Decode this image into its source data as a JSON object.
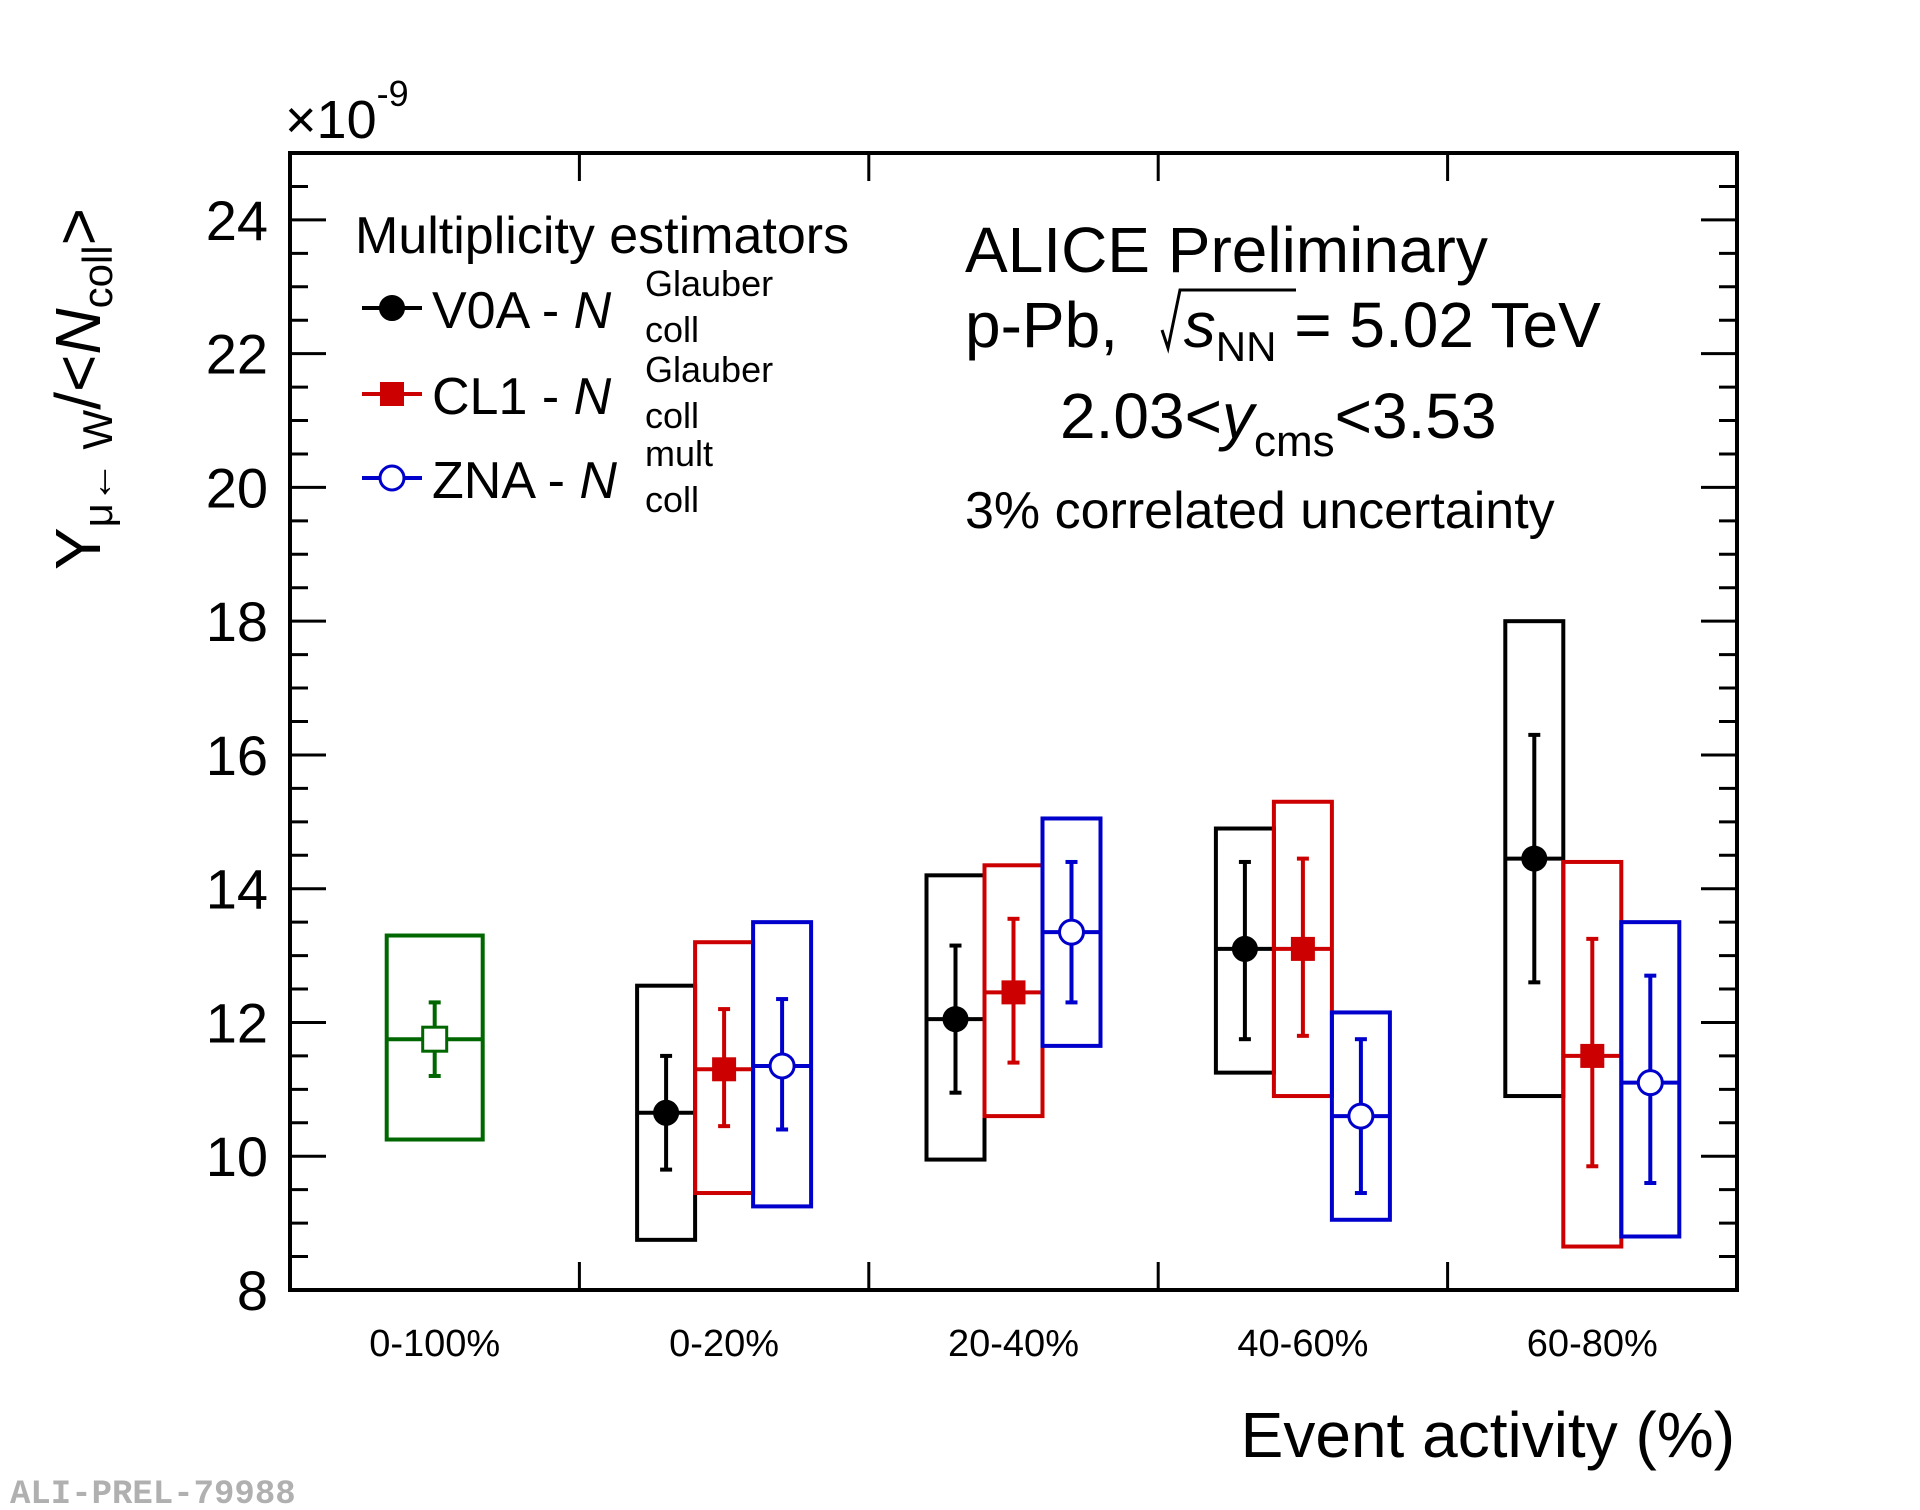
{
  "chart_data": {
    "type": "scatter",
    "title": "",
    "xlabel": "Event activity (%)",
    "ylabel": {
      "base": "Y",
      "sub": "μ← W",
      "mid": "/<",
      "ital": "N",
      "sub2": "coll",
      "end": ">"
    },
    "y_multiplier": {
      "prefix": "×10",
      "exp": "-9"
    },
    "ylim": [
      8,
      25
    ],
    "yticks": [
      "8",
      "10",
      "12",
      "14",
      "16",
      "18",
      "20",
      "22",
      "24"
    ],
    "categories": [
      "0-100%",
      "0-20%",
      "20-40%",
      "40-60%",
      "60-80%"
    ],
    "colors": {
      "V0A": "#000000",
      "CL1": "#cc0000",
      "ZNA": "#0000cc",
      "MB": "#006600"
    },
    "series": [
      {
        "name": "MB",
        "marker": "open-square",
        "color": "#006600",
        "points": [
          {
            "cat": 0,
            "y": 11.75,
            "stat": [
              11.2,
              12.3
            ],
            "sys": [
              10.25,
              13.3
            ]
          }
        ]
      },
      {
        "name": "V0A",
        "marker": "filled-circle",
        "color": "#000000",
        "points": [
          {
            "cat": 1,
            "y": 10.65,
            "stat": [
              9.8,
              11.5
            ],
            "sys": [
              8.75,
              12.55
            ]
          },
          {
            "cat": 2,
            "y": 12.05,
            "stat": [
              10.95,
              13.15
            ],
            "sys": [
              9.95,
              14.2
            ]
          },
          {
            "cat": 3,
            "y": 13.1,
            "stat": [
              11.75,
              14.4
            ],
            "sys": [
              11.25,
              14.9
            ]
          },
          {
            "cat": 4,
            "y": 14.45,
            "stat": [
              12.6,
              16.3
            ],
            "sys": [
              10.9,
              18.0
            ]
          }
        ]
      },
      {
        "name": "CL1",
        "marker": "filled-square",
        "color": "#cc0000",
        "points": [
          {
            "cat": 1,
            "y": 11.3,
            "stat": [
              10.45,
              12.2
            ],
            "sys": [
              9.45,
              13.2
            ]
          },
          {
            "cat": 2,
            "y": 12.45,
            "stat": [
              11.4,
              13.55
            ],
            "sys": [
              10.6,
              14.35
            ]
          },
          {
            "cat": 3,
            "y": 13.1,
            "stat": [
              11.8,
              14.45
            ],
            "sys": [
              10.9,
              15.3
            ]
          },
          {
            "cat": 4,
            "y": 11.5,
            "stat": [
              9.85,
              13.25
            ],
            "sys": [
              8.65,
              14.4
            ]
          }
        ]
      },
      {
        "name": "ZNA",
        "marker": "open-circle",
        "color": "#0000cc",
        "points": [
          {
            "cat": 1,
            "y": 11.35,
            "stat": [
              10.4,
              12.35
            ],
            "sys": [
              9.25,
              13.5
            ]
          },
          {
            "cat": 2,
            "y": 13.35,
            "stat": [
              12.3,
              14.4
            ],
            "sys": [
              11.65,
              15.05
            ]
          },
          {
            "cat": 3,
            "y": 10.6,
            "stat": [
              9.45,
              11.75
            ],
            "sys": [
              9.05,
              12.15
            ]
          },
          {
            "cat": 4,
            "y": 11.1,
            "stat": [
              9.6,
              12.7
            ],
            "sys": [
              8.8,
              13.5
            ]
          }
        ]
      }
    ],
    "legend": {
      "title": "Multiplicity estimators",
      "entries": [
        {
          "series": "V0A",
          "label": "V0A - ",
          "sym": "N",
          "sub": "coll",
          "sup": "Glauber"
        },
        {
          "series": "CL1",
          "label": "CL1 - ",
          "sym": "N",
          "sub": "coll",
          "sup": "Glauber"
        },
        {
          "series": "ZNA",
          "label": "ZNA - ",
          "sym": "N",
          "sub": "coll",
          "sup": "mult"
        }
      ],
      "placement": "top-left"
    },
    "annotations": {
      "line1": "ALICE Preliminary",
      "line2_a": "p-Pb, ",
      "line2_s": "s",
      "line2_sub": "NN",
      "line2_b": " = 5.02 TeV",
      "line3_a": "2.03<",
      "line3_y": "y",
      "line3_sub": "cms",
      "line3_b": "<3.53",
      "line4": "3% correlated uncertainty"
    },
    "watermark": "ALI-PREL-79988"
  }
}
